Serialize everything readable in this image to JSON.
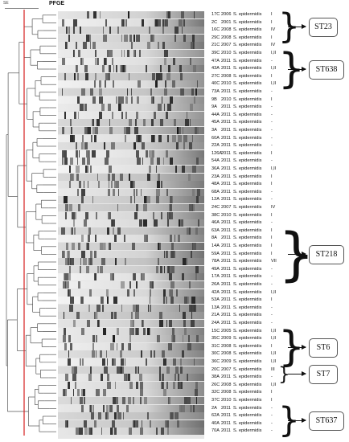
{
  "header": {
    "title": "PFGE",
    "scale_label": "SE"
  },
  "entries": [
    {
      "id": "17C",
      "year": "2006",
      "species": "S. epidermidis",
      "sccmec": "I"
    },
    {
      "id": "2C",
      "year": "2001",
      "species": "S. epidermidis",
      "sccmec": "I"
    },
    {
      "id": "16C",
      "year": "2008",
      "species": "S. epidermidis",
      "sccmec": "IV"
    },
    {
      "id": "29C",
      "year": "2008",
      "species": "S. epidermidis",
      "sccmec": "I"
    },
    {
      "id": "21C",
      "year": "2007",
      "species": "S. epidermidis",
      "sccmec": "IV"
    },
    {
      "id": "39C",
      "year": "2010",
      "species": "S. epidermidis",
      "sccmec": "I,II"
    },
    {
      "id": "47A",
      "year": "2011",
      "species": "S. epidermidis",
      "sccmec": "-"
    },
    {
      "id": "43A",
      "year": "2011",
      "species": "S. epidermidis",
      "sccmec": "I,II"
    },
    {
      "id": "27C",
      "year": "2008",
      "species": "S. epidermidis",
      "sccmec": "I"
    },
    {
      "id": "40C",
      "year": "2010",
      "species": "S. epidermidis",
      "sccmec": "I,II"
    },
    {
      "id": "73A",
      "year": "2011",
      "species": "S. epidermidis",
      "sccmec": "-"
    },
    {
      "id": "9B",
      "year": "2010",
      "species": "S. epidermidis",
      "sccmec": "I"
    },
    {
      "id": "9A",
      "year": "2011",
      "species": "S. epidermidis",
      "sccmec": "-"
    },
    {
      "id": "44A",
      "year": "2011",
      "species": "S. epidermidis",
      "sccmec": "-"
    },
    {
      "id": "45A",
      "year": "2011",
      "species": "S. epidermidis",
      "sccmec": "-"
    },
    {
      "id": "3A",
      "year": "2011",
      "species": "S. epidermidis",
      "sccmec": "-"
    },
    {
      "id": "60A",
      "year": "2011",
      "species": "S. epidermidis",
      "sccmec": "-"
    },
    {
      "id": "22A",
      "year": "2011",
      "species": "S. epidermidis",
      "sccmec": "-"
    },
    {
      "id": "126A",
      "year": "2011",
      "species": "S. epidermidis",
      "sccmec": "I"
    },
    {
      "id": "54A",
      "year": "2011",
      "species": "S. epidermidis",
      "sccmec": "-"
    },
    {
      "id": "36A",
      "year": "2011",
      "species": "S. epidermidis",
      "sccmec": "I,II"
    },
    {
      "id": "23A",
      "year": "2011",
      "species": "S. epidermidis",
      "sccmec": "I"
    },
    {
      "id": "48A",
      "year": "2011",
      "species": "S. epidermidis",
      "sccmec": "I"
    },
    {
      "id": "68A",
      "year": "2011",
      "species": "S. epidermidis",
      "sccmec": "-"
    },
    {
      "id": "12A",
      "year": "2011",
      "species": "S. epidermidis",
      "sccmec": "-"
    },
    {
      "id": "24C",
      "year": "2007",
      "species": "S. epidermidis",
      "sccmec": "IV"
    },
    {
      "id": "38C",
      "year": "2010",
      "species": "S. epidermidis",
      "sccmec": "I"
    },
    {
      "id": "46A",
      "year": "2011",
      "species": "S. epidermidis",
      "sccmec": "-"
    },
    {
      "id": "63A",
      "year": "2011",
      "species": "S. epidermidis",
      "sccmec": "I"
    },
    {
      "id": "8A",
      "year": "2011",
      "species": "S. epidermidis",
      "sccmec": "I"
    },
    {
      "id": "14A",
      "year": "2011",
      "species": "S. epidermidis",
      "sccmec": "I"
    },
    {
      "id": "59A",
      "year": "2011",
      "species": "S. epidermidis",
      "sccmec": "I"
    },
    {
      "id": "78A",
      "year": "2011",
      "species": "S. epidermidis",
      "sccmec": "VII"
    },
    {
      "id": "49A",
      "year": "2011",
      "species": "S. epidermidis",
      "sccmec": "-"
    },
    {
      "id": "17A",
      "year": "2011",
      "species": "S. epidermidis",
      "sccmec": "-"
    },
    {
      "id": "26A",
      "year": "2011",
      "species": "S. epidermidis",
      "sccmec": "-"
    },
    {
      "id": "42A",
      "year": "2011",
      "species": "S. epidermidis",
      "sccmec": "I,II"
    },
    {
      "id": "53A",
      "year": "2011",
      "species": "S. epidermidis",
      "sccmec": "I"
    },
    {
      "id": "13A",
      "year": "2011",
      "species": "S. epidermidis",
      "sccmec": "-"
    },
    {
      "id": "21A",
      "year": "2011",
      "species": "S. epidermidis",
      "sccmec": "-"
    },
    {
      "id": "24A",
      "year": "2011",
      "species": "S. epidermidis",
      "sccmec": "-"
    },
    {
      "id": "15C",
      "year": "2005",
      "species": "S. epidermidis",
      "sccmec": "I,II"
    },
    {
      "id": "35C",
      "year": "2009",
      "species": "S. epidermidis",
      "sccmec": "I,II"
    },
    {
      "id": "31C",
      "year": "2008",
      "species": "S. epidermidis",
      "sccmec": "I"
    },
    {
      "id": "30C",
      "year": "2008",
      "species": "S. epidermidis",
      "sccmec": "I,II"
    },
    {
      "id": "36C",
      "year": "2009",
      "species": "S. epidermidis",
      "sccmec": "I,II"
    },
    {
      "id": "20C",
      "year": "2007",
      "species": "S. epidermidis",
      "sccmec": "III"
    },
    {
      "id": "38A",
      "year": "2011",
      "species": "S. epidermidis",
      "sccmec": "-"
    },
    {
      "id": "26C",
      "year": "2008",
      "species": "S. epidermidis",
      "sccmec": "I,II"
    },
    {
      "id": "32C",
      "year": "2008",
      "species": "S. epidermidis",
      "sccmec": "I"
    },
    {
      "id": "37C",
      "year": "2010",
      "species": "S. epidermidis",
      "sccmec": "I"
    },
    {
      "id": "2A",
      "year": "2011",
      "species": "S. epidermidis",
      "sccmec": "-"
    },
    {
      "id": "62A",
      "year": "2011",
      "species": "S. epidermidis",
      "sccmec": "-"
    },
    {
      "id": "40A",
      "year": "2011",
      "species": "S. epidermidis",
      "sccmec": "-"
    },
    {
      "id": "70A",
      "year": "2011",
      "species": "S. epidermidis",
      "sccmec": "-"
    }
  ],
  "sequence_types": [
    {
      "label": "ST23",
      "first_row": 0,
      "last_row": 3
    },
    {
      "label": "ST638",
      "first_row": 5,
      "last_row": 9
    },
    {
      "label": "ST218",
      "first_row": 28,
      "last_row": 34
    },
    {
      "label": "ST6",
      "first_row": 41,
      "last_row": 45
    },
    {
      "label": "ST7",
      "first_row": 46,
      "last_row": 47
    },
    {
      "label": "ST637",
      "first_row": 51,
      "last_row": 54
    }
  ],
  "colors": {
    "cutoff_line": "#d62020",
    "tree": "#555555",
    "gel_bg": "#e6e6e6",
    "band": "#1a1a1a"
  }
}
